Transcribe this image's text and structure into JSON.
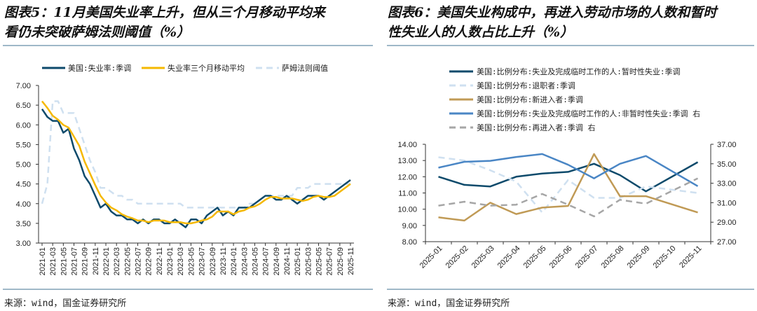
{
  "left": {
    "title_line1": "图表5：11月美国失业率上升，但从三个月移动平均来",
    "title_line2": "看仍未突破萨姆法则阈值（%）",
    "source": "来源：wind，国金证券研究所"
  },
  "right": {
    "title_line1": "图表6：美国失业构成中，再进入劳动市场的人数和暂时",
    "title_line2": "性失业人的人数占比上升（%）",
    "source": "来源：wind，国金证券研究所"
  },
  "chart_data": [
    {
      "type": "line",
      "ylim": [
        3.0,
        7.0
      ],
      "yticks": [
        "3.00",
        "3.50",
        "4.00",
        "4.50",
        "5.00",
        "5.50",
        "6.00",
        "6.50",
        "7.00"
      ],
      "x_start": "2021-01",
      "x_end": "2025-11",
      "xticks": [
        "2021-01",
        "2021-03",
        "2021-05",
        "2021-07",
        "2021-09",
        "2021-11",
        "2022-01",
        "2022-03",
        "2022-05",
        "2022-07",
        "2022-09",
        "2022-11",
        "2023-01",
        "2023-03",
        "2023-05",
        "2023-07",
        "2023-09",
        "2023-11",
        "2024-01",
        "2024-03",
        "2024-05",
        "2024-07",
        "2024-09",
        "2024-11",
        "2025-01",
        "2025-03",
        "2025-05",
        "2025-07",
        "2025-09",
        "2025-11"
      ],
      "legend_position": "top",
      "series": [
        {
          "name": "美国:失业率:季调",
          "color": "#0d4a6b",
          "dash": "solid",
          "values": [
            6.4,
            6.2,
            6.1,
            6.1,
            5.8,
            5.9,
            5.4,
            5.1,
            4.7,
            4.5,
            4.2,
            3.9,
            4.0,
            3.8,
            3.7,
            3.7,
            3.6,
            3.6,
            3.5,
            3.6,
            3.5,
            3.6,
            3.6,
            3.5,
            3.5,
            3.6,
            3.5,
            3.4,
            3.6,
            3.6,
            3.5,
            3.7,
            3.8,
            3.9,
            3.7,
            3.8,
            3.7,
            3.9,
            3.9,
            3.9,
            4.0,
            4.1,
            4.2,
            4.2,
            4.1,
            4.1,
            4.2,
            4.1,
            4.0,
            4.1,
            4.2,
            4.2,
            4.2,
            4.1,
            4.2,
            4.3,
            4.4,
            4.5,
            4.6
          ]
        },
        {
          "name": "失业率三个月移动平均",
          "color": "#f5b800",
          "dash": "solid",
          "values": [
            6.6,
            6.43,
            6.23,
            6.13,
            6.0,
            5.93,
            5.7,
            5.47,
            5.07,
            4.77,
            4.47,
            4.2,
            4.03,
            3.9,
            3.83,
            3.73,
            3.67,
            3.63,
            3.57,
            3.57,
            3.53,
            3.57,
            3.57,
            3.57,
            3.53,
            3.53,
            3.53,
            3.5,
            3.5,
            3.53,
            3.57,
            3.6,
            3.67,
            3.8,
            3.8,
            3.8,
            3.73,
            3.8,
            3.83,
            3.9,
            3.93,
            4.0,
            4.1,
            4.17,
            4.17,
            4.13,
            4.13,
            4.13,
            4.1,
            4.07,
            4.1,
            4.17,
            4.2,
            4.17,
            4.17,
            4.2,
            4.3,
            4.4,
            4.5
          ]
        },
        {
          "name": "萨姆法则阈值",
          "color": "#cfe0f0",
          "dash": "dashed",
          "values": [
            4.0,
            4.5,
            6.6,
            6.6,
            6.3,
            6.3,
            6.3,
            5.9,
            5.5,
            5.1,
            4.8,
            4.4,
            4.4,
            4.3,
            4.2,
            4.2,
            4.1,
            4.1,
            4.0,
            4.0,
            4.0,
            4.0,
            4.0,
            4.0,
            4.0,
            4.0,
            4.0,
            3.9,
            3.9,
            3.9,
            3.9,
            3.9,
            3.9,
            3.9,
            3.9,
            3.9,
            3.9,
            3.9,
            3.9,
            4.0,
            4.0,
            4.1,
            4.2,
            4.2,
            4.2,
            4.2,
            4.2,
            4.2,
            4.4,
            4.4,
            4.4,
            4.5,
            4.5,
            4.5,
            4.5,
            4.5,
            4.5,
            4.5,
            4.5
          ]
        }
      ]
    },
    {
      "type": "line",
      "categories": [
        "2025-01",
        "2025-02",
        "2025-03",
        "2025-04",
        "2025-05",
        "2025-06",
        "2025-07",
        "2025-08",
        "2025-09",
        "2025-10",
        "2025-11"
      ],
      "ylim": [
        8.0,
        14.0
      ],
      "yticks": [
        "8.00",
        "9.00",
        "10.00",
        "11.00",
        "12.00",
        "13.00",
        "14.00"
      ],
      "y2lim": [
        27.0,
        37.0
      ],
      "y2ticks": [
        "27.00",
        "29.00",
        "31.00",
        "33.00",
        "35.00",
        "37.00"
      ],
      "legend_position": "top",
      "series": [
        {
          "name": "美国:比例分布:失业及完成临时工作的人:暂时性失业:季调",
          "axis": "left",
          "color": "#0d4a6b",
          "dash": "solid",
          "values": [
            12.0,
            11.5,
            11.4,
            12.0,
            12.2,
            12.3,
            12.8,
            12.1,
            11.1,
            null,
            12.9
          ]
        },
        {
          "name": "美国:比例分布:退职者:季调",
          "axis": "left",
          "color": "#cfe0f0",
          "dash": "dashed",
          "values": [
            13.2,
            13.0,
            12.4,
            11.7,
            9.8,
            11.8,
            10.7,
            10.7,
            11.4,
            null,
            11.0
          ]
        },
        {
          "name": "美国:比例分布:新进入者:季调",
          "axis": "left",
          "color": "#c09a55",
          "dash": "solid",
          "values": [
            9.5,
            9.3,
            10.4,
            9.7,
            10.1,
            10.2,
            13.4,
            10.8,
            10.8,
            null,
            9.8
          ]
        },
        {
          "name": "美国:比例分布:失业及完成临时工作的人:非暂时性失业:季调 右",
          "axis": "right",
          "color": "#4a86c5",
          "dash": "solid",
          "values": [
            34.6,
            35.2,
            35.3,
            35.7,
            36.0,
            34.9,
            33.5,
            35.0,
            35.8,
            null,
            32.7
          ]
        },
        {
          "name": "美国:比例分布:再进入者:季调 右",
          "axis": "right",
          "color": "#a6a6a6",
          "dash": "dashed",
          "values": [
            30.7,
            31.1,
            30.7,
            30.8,
            31.9,
            30.8,
            29.6,
            31.3,
            30.9,
            null,
            33.5
          ]
        }
      ]
    }
  ]
}
